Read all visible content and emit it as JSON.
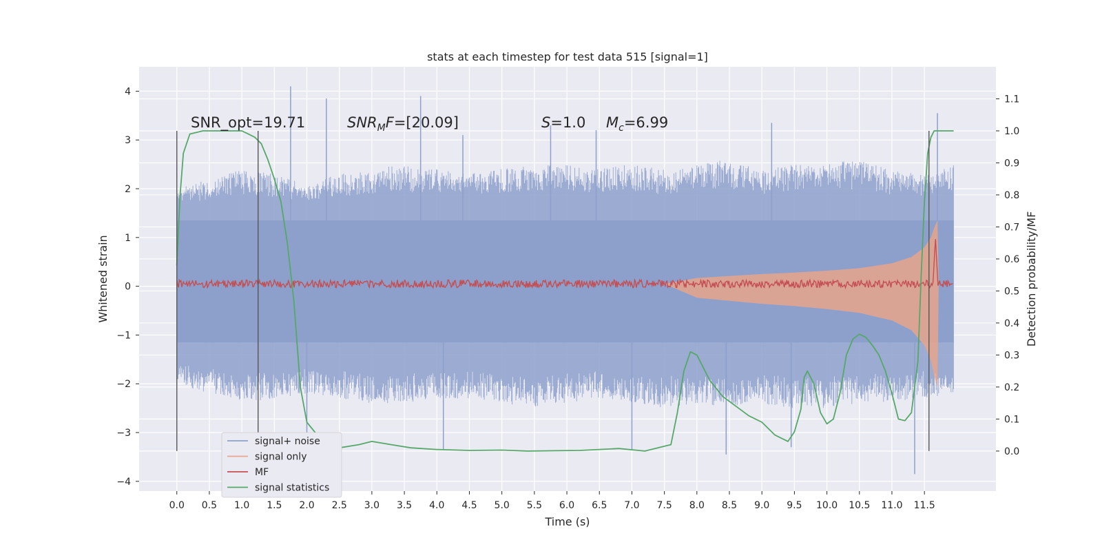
{
  "chart_data": {
    "type": "line",
    "title": "stats at each timestep for test data 515 [signal=1]",
    "xlabel": "Time (s)",
    "ylabel": "Whitened strain",
    "y2label": "Detection probability/MF",
    "xlim": [
      -0.58,
      12.6
    ],
    "ylim": [
      -4.2,
      4.5
    ],
    "y2lim": [
      -0.125,
      1.2
    ],
    "x_ticks": [
      0.0,
      0.5,
      1.0,
      1.5,
      2.0,
      2.5,
      3.0,
      3.5,
      4.0,
      4.5,
      5.0,
      5.5,
      6.0,
      6.5,
      7.0,
      7.5,
      8.0,
      8.5,
      9.0,
      9.5,
      10.0,
      10.5,
      11.0,
      11.5
    ],
    "x_tick_labels": [
      "0.0",
      "0.5",
      "1.0",
      "1.5",
      "2.0",
      "2.5",
      "3.0",
      "3.5",
      "4.0",
      "4.5",
      "5.0",
      "5.5",
      "6.0",
      "6.5",
      "7.0",
      "7.5",
      "8.0",
      "8.5",
      "9.0",
      "9.5",
      "10.0",
      "10.5",
      "11.0",
      "11.5"
    ],
    "y_ticks": [
      -4,
      -3,
      -2,
      -1,
      0,
      1,
      2,
      3,
      4
    ],
    "y_tick_labels": [
      "−4",
      "−3",
      "−2",
      "−1",
      "0",
      "1",
      "2",
      "3",
      "4"
    ],
    "y2_ticks": [
      0.0,
      0.1,
      0.2,
      0.3,
      0.4,
      0.5,
      0.6,
      0.7,
      0.8,
      0.9,
      1.0,
      1.1
    ],
    "y2_tick_labels": [
      "0.0",
      "0.1",
      "0.2",
      "0.3",
      "0.4",
      "0.5",
      "0.6",
      "0.7",
      "0.8",
      "0.9",
      "1.0",
      "1.1"
    ],
    "grid": true,
    "legend_position": "bottom-left",
    "legend": [
      {
        "label": "signal+ noise",
        "color": "#8da0cb"
      },
      {
        "label": "signal only",
        "color": "#e8a58c"
      },
      {
        "label": "MF",
        "color": "#c44e52"
      },
      {
        "label": "signal statistics",
        "color": "#55a868"
      }
    ],
    "annotations": [
      {
        "text": "SNR_opt=19.71",
        "x": 0.2
      },
      {
        "text": "SNRMF=[20.09]",
        "x": 2.6
      },
      {
        "text": "S=1.0",
        "x": 5.6
      },
      {
        "text": "Mc=6.99",
        "x": 6.6
      }
    ],
    "vertical_markers_x": [
      0.0,
      1.25,
      11.57
    ],
    "series": [
      {
        "name": "signal+ noise",
        "color": "#8da0cb",
        "x_range": [
          0.0,
          11.95
        ],
        "envelope_upper": [
          2.0,
          2.2,
          2.4,
          2.3,
          2.1,
          2.3,
          2.4,
          2.5,
          2.4,
          2.3,
          2.4,
          2.5,
          2.5,
          2.4,
          2.5,
          2.4,
          2.5,
          2.6,
          2.4,
          2.5,
          2.5,
          2.6,
          2.4,
          2.3,
          2.5
        ],
        "envelope_lower": [
          -2.0,
          -2.2,
          -2.4,
          -2.3,
          -2.2,
          -2.3,
          -2.4,
          -2.4,
          -2.3,
          -2.3,
          -2.4,
          -2.5,
          -2.4,
          -2.3,
          -2.4,
          -2.5,
          -2.4,
          -2.5,
          -2.4,
          -2.5,
          -2.5,
          -2.4,
          -2.4,
          -2.3,
          -2.2
        ],
        "spikes": [
          {
            "x": 1.75,
            "y": 4.1
          },
          {
            "x": 2.3,
            "y": 3.85
          },
          {
            "x": 3.75,
            "y": 3.9
          },
          {
            "x": 4.4,
            "y": 3.1
          },
          {
            "x": 5.75,
            "y": 3.3
          },
          {
            "x": 6.45,
            "y": 3.2
          },
          {
            "x": 9.15,
            "y": 3.35
          },
          {
            "x": 11.7,
            "y": 3.55
          },
          {
            "x": 2.0,
            "y": -3.0
          },
          {
            "x": 4.1,
            "y": -3.35
          },
          {
            "x": 7.0,
            "y": -3.35
          },
          {
            "x": 8.45,
            "y": -3.45
          },
          {
            "x": 9.45,
            "y": -3.3
          },
          {
            "x": 11.35,
            "y": -3.85
          }
        ]
      },
      {
        "name": "signal only",
        "color": "#e8a58c",
        "x": [
          7.5,
          8.0,
          8.5,
          9.0,
          9.5,
          10.0,
          10.5,
          11.0,
          11.3,
          11.5,
          11.6,
          11.65,
          11.7,
          11.72
        ],
        "amplitude": [
          0.0,
          0.12,
          0.16,
          0.2,
          0.23,
          0.27,
          0.32,
          0.42,
          0.55,
          0.75,
          0.95,
          1.15,
          1.3,
          0.0
        ]
      },
      {
        "name": "MF",
        "color": "#c44e52",
        "x_range": [
          0.0,
          11.95
        ],
        "baseline": 0.05,
        "noise_amplitude": 0.08,
        "peak": {
          "x": 11.67,
          "y": 1.0
        }
      },
      {
        "name": "signal statistics",
        "color": "#55a868",
        "axis": "right",
        "x": [
          0.0,
          0.05,
          0.1,
          0.2,
          0.4,
          0.7,
          1.0,
          1.1,
          1.2,
          1.3,
          1.4,
          1.5,
          1.6,
          1.7,
          1.8,
          1.9,
          2.0,
          2.2,
          2.5,
          2.8,
          3.0,
          3.3,
          3.6,
          4.0,
          4.5,
          5.0,
          5.4,
          5.8,
          6.2,
          6.8,
          7.2,
          7.5,
          7.6,
          7.7,
          7.8,
          7.9,
          8.0,
          8.2,
          8.4,
          8.6,
          8.8,
          9.0,
          9.2,
          9.4,
          9.5,
          9.6,
          9.65,
          9.7,
          9.8,
          9.9,
          10.0,
          10.1,
          10.2,
          10.3,
          10.4,
          10.5,
          10.6,
          10.7,
          10.8,
          10.9,
          11.0,
          11.1,
          11.2,
          11.3,
          11.4,
          11.45,
          11.5,
          11.55,
          11.6,
          11.65,
          11.7,
          11.8,
          11.9,
          11.95
        ],
        "values": [
          0.58,
          0.8,
          0.93,
          0.99,
          1.0,
          1.0,
          1.0,
          0.99,
          0.98,
          0.96,
          0.91,
          0.85,
          0.78,
          0.65,
          0.47,
          0.2,
          0.09,
          0.04,
          0.01,
          0.02,
          0.03,
          0.02,
          0.01,
          0.005,
          0.002,
          0.003,
          0.0,
          0.001,
          0.002,
          0.008,
          0.0,
          0.015,
          0.02,
          0.12,
          0.25,
          0.31,
          0.3,
          0.22,
          0.17,
          0.14,
          0.11,
          0.09,
          0.05,
          0.03,
          0.06,
          0.13,
          0.23,
          0.25,
          0.21,
          0.12,
          0.085,
          0.1,
          0.18,
          0.3,
          0.35,
          0.365,
          0.355,
          0.33,
          0.3,
          0.25,
          0.18,
          0.1,
          0.095,
          0.12,
          0.28,
          0.55,
          0.78,
          0.93,
          0.98,
          1.0,
          1.0,
          1.0,
          1.0,
          1.0
        ]
      }
    ]
  }
}
